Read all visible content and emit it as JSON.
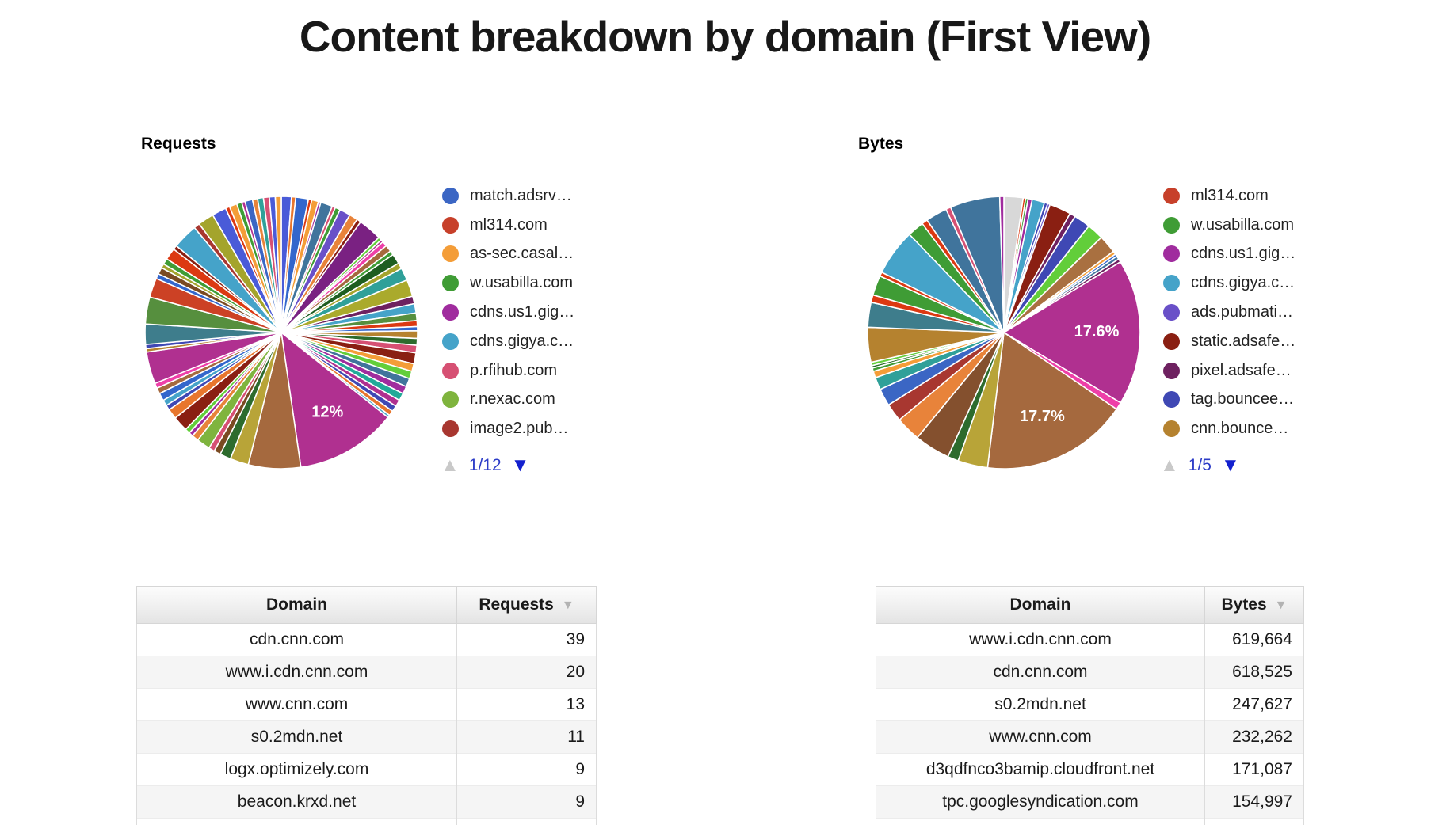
{
  "title": "Content breakdown by domain (First View)",
  "colors": {
    "pager_text": "#2b3bc7",
    "pager_enabled": "#1320ce",
    "pager_disabled": "#c9c9c9",
    "sort_icon": "#b3b3b3"
  },
  "ui": {
    "requests_pager": {
      "up": "▲",
      "down": "▼",
      "page": "1/12"
    },
    "bytes_pager": {
      "up": "▲",
      "down": "▼",
      "page": "1/5"
    },
    "sort_glyph": "▼"
  },
  "chart_data": [
    {
      "type": "pie",
      "name": "requests",
      "title": "Requests",
      "legend_position": "right",
      "legend_page": "1/12",
      "labeled_slices": [
        {
          "label": "12%",
          "color": "#B03090"
        }
      ],
      "legend": [
        {
          "label": "match.adsrv…",
          "color": "#3B66C4"
        },
        {
          "label": "ml314.com",
          "color": "#C7402A"
        },
        {
          "label": "as-sec.casal…",
          "color": "#F49D38"
        },
        {
          "label": "w.usabilla.com",
          "color": "#3F9C35"
        },
        {
          "label": "cdns.us1.gig…",
          "color": "#A02C9E"
        },
        {
          "label": "cdns.gigya.c…",
          "color": "#45A3C9"
        },
        {
          "label": "p.rfihub.com",
          "color": "#D65073"
        },
        {
          "label": "r.nexac.com",
          "color": "#7FB43E"
        },
        {
          "label": "image2.pub…",
          "color": "#A83730"
        }
      ],
      "slices": [
        [
          1.2,
          "#4A5BD8"
        ],
        [
          0.5,
          "#E8762D"
        ],
        [
          1.5,
          "#3366CC"
        ],
        [
          0.4,
          "#DC3912"
        ],
        [
          0.8,
          "#F49D38"
        ],
        [
          0.3,
          "#A02C9E"
        ],
        [
          1.4,
          "#40749C"
        ],
        [
          0.4,
          "#D65073"
        ],
        [
          0.6,
          "#3F9C35"
        ],
        [
          1.3,
          "#6950C8"
        ],
        [
          1.0,
          "#E8833A"
        ],
        [
          0.5,
          "#8A1F12"
        ],
        [
          2.8,
          "#7A2182"
        ],
        [
          0.4,
          "#62CE3A"
        ],
        [
          0.3,
          "#B03090"
        ],
        [
          0.6,
          "#EE3FA8"
        ],
        [
          0.8,
          "#A5693E"
        ],
        [
          0.5,
          "#3F9C35"
        ],
        [
          1.2,
          "#1E5E20"
        ],
        [
          0.7,
          "#A4A42C"
        ],
        [
          1.5,
          "#2FA099"
        ],
        [
          2.0,
          "#AAAA2C"
        ],
        [
          0.9,
          "#6E2160"
        ],
        [
          1.1,
          "#45A3C9"
        ],
        [
          0.9,
          "#568F3E"
        ],
        [
          0.7,
          "#DC3912"
        ],
        [
          0.5,
          "#3366CC"
        ],
        [
          0.9,
          "#B5822F"
        ],
        [
          0.8,
          "#2D6B2D"
        ],
        [
          0.9,
          "#D65073"
        ],
        [
          1.3,
          "#8A1F12"
        ],
        [
          0.9,
          "#F49D38"
        ],
        [
          0.9,
          "#62CE3A"
        ],
        [
          1.0,
          "#40749C"
        ],
        [
          0.9,
          "#A02C9E"
        ],
        [
          0.9,
          "#22AA99"
        ],
        [
          0.8,
          "#B03090"
        ],
        [
          0.7,
          "#3F48B4"
        ],
        [
          0.6,
          "#E8762D"
        ],
        [
          0.3,
          "#45A3C9"
        ],
        [
          12.0,
          "#B03090",
          "12%"
        ],
        [
          6.2,
          "#A5693E"
        ],
        [
          2.2,
          "#B8A438"
        ],
        [
          1.3,
          "#2D6B2D"
        ],
        [
          0.8,
          "#7A4A21"
        ],
        [
          0.7,
          "#D65073"
        ],
        [
          1.6,
          "#7FB43E"
        ],
        [
          0.8,
          "#E8833A"
        ],
        [
          0.5,
          "#A02C9E"
        ],
        [
          0.6,
          "#62CE3A"
        ],
        [
          1.8,
          "#8A1F12"
        ],
        [
          1.2,
          "#E8762D"
        ],
        [
          0.6,
          "#3F48B4"
        ],
        [
          0.7,
          "#45A3C9"
        ],
        [
          0.9,
          "#3366CC"
        ],
        [
          0.7,
          "#A5693E"
        ],
        [
          0.6,
          "#EE3FA8"
        ],
        [
          3.8,
          "#B03090"
        ],
        [
          0.4,
          "#B5822F"
        ],
        [
          0.5,
          "#3F48B4"
        ],
        [
          2.4,
          "#3E7D8C"
        ],
        [
          3.2,
          "#568F3E"
        ],
        [
          2.3,
          "#CC4125"
        ],
        [
          0.6,
          "#3366CC"
        ],
        [
          0.8,
          "#7A4A21"
        ],
        [
          0.5,
          "#A4A42C"
        ],
        [
          0.7,
          "#3F9C35"
        ],
        [
          1.4,
          "#DC3912"
        ],
        [
          0.5,
          "#8A1F12"
        ],
        [
          3.0,
          "#45A3C9"
        ],
        [
          0.7,
          "#A83730"
        ],
        [
          1.9,
          "#A4A42C"
        ],
        [
          1.7,
          "#4A5BD8"
        ],
        [
          0.5,
          "#DC3912"
        ],
        [
          0.9,
          "#F49D38"
        ],
        [
          0.6,
          "#3F9C35"
        ],
        [
          0.4,
          "#B03090"
        ],
        [
          0.9,
          "#3B66C4"
        ],
        [
          0.6,
          "#E8833A"
        ],
        [
          0.7,
          "#2FA099"
        ],
        [
          0.7,
          "#D65073"
        ],
        [
          0.7,
          "#4A5BD8"
        ],
        [
          0.7,
          "#F49D38"
        ]
      ]
    },
    {
      "type": "pie",
      "name": "bytes",
      "title": "Bytes",
      "legend_position": "right",
      "legend_page": "1/5",
      "labeled_slices": [
        {
          "label": "17.6%",
          "color": "#B03090"
        },
        {
          "label": "17.7%",
          "color": "#A5693E"
        }
      ],
      "legend": [
        {
          "label": "ml314.com",
          "color": "#C7402A"
        },
        {
          "label": "w.usabilla.com",
          "color": "#3F9C35"
        },
        {
          "label": "cdns.us1.gig…",
          "color": "#A02C9E"
        },
        {
          "label": "cdns.gigya.c…",
          "color": "#45A3C9"
        },
        {
          "label": "ads.pubmati…",
          "color": "#6950C8"
        },
        {
          "label": "static.adsafe…",
          "color": "#8A1F12"
        },
        {
          "label": "pixel.adsafe…",
          "color": "#6E2160"
        },
        {
          "label": "tag.bouncee…",
          "color": "#3F48B4"
        },
        {
          "label": "cnn.bounce…",
          "color": "#B5822F"
        }
      ],
      "slices": [
        [
          2.3,
          "#D8D8D8"
        ],
        [
          0.3,
          "#DC3912"
        ],
        [
          0.3,
          "#3F9C35"
        ],
        [
          0.5,
          "#A02C9E"
        ],
        [
          1.5,
          "#45A3C9"
        ],
        [
          0.4,
          "#3F48B4"
        ],
        [
          0.3,
          "#6950C8"
        ],
        [
          2.6,
          "#8A1F12"
        ],
        [
          0.7,
          "#6E2160"
        ],
        [
          2.0,
          "#3F48B4"
        ],
        [
          2.0,
          "#62CE3A"
        ],
        [
          2.2,
          "#A97040"
        ],
        [
          0.4,
          "#F49D38"
        ],
        [
          0.3,
          "#3366CC"
        ],
        [
          0.4,
          "#40749C"
        ],
        [
          0.4,
          "#6E2160"
        ],
        [
          17.6,
          "#B03090",
          "17.6%"
        ],
        [
          0.9,
          "#EE3FA8"
        ],
        [
          17.7,
          "#A5693E",
          "17.7%"
        ],
        [
          3.6,
          "#B8A438"
        ],
        [
          1.3,
          "#2D6B2D"
        ],
        [
          4.3,
          "#84502E"
        ],
        [
          3.0,
          "#E8833A"
        ],
        [
          2.2,
          "#A83730"
        ],
        [
          2.1,
          "#3B66C4"
        ],
        [
          1.5,
          "#2FA099"
        ],
        [
          0.8,
          "#F49D38"
        ],
        [
          0.4,
          "#3F9C35"
        ],
        [
          0.3,
          "#2D6B2D"
        ],
        [
          0.4,
          "#62CE3A"
        ],
        [
          4.2,
          "#B5822F"
        ],
        [
          3.0,
          "#3E7D8C"
        ],
        [
          0.9,
          "#DC3912"
        ],
        [
          2.4,
          "#3F9C35"
        ],
        [
          0.5,
          "#DC3912"
        ],
        [
          5.6,
          "#45A3C9"
        ],
        [
          2.0,
          "#3F9C35"
        ],
        [
          0.7,
          "#DC3912"
        ],
        [
          2.6,
          "#40749C"
        ],
        [
          0.6,
          "#D65073"
        ],
        [
          6.0,
          "#40749C"
        ],
        [
          0.5,
          "#A02C9E"
        ]
      ]
    },
    {
      "type": "table",
      "name": "requests_by_domain",
      "headers": [
        "Domain",
        "Requests"
      ],
      "sorted_by": "Requests",
      "rows": [
        [
          "cdn.cnn.com",
          "39"
        ],
        [
          "www.i.cdn.cnn.com",
          "20"
        ],
        [
          "www.cnn.com",
          "13"
        ],
        [
          "s0.2mdn.net",
          "11"
        ],
        [
          "logx.optimizely.com",
          "9"
        ],
        [
          "beacon.krxd.net",
          "9"
        ]
      ]
    },
    {
      "type": "table",
      "name": "bytes_by_domain",
      "headers": [
        "Domain",
        "Bytes"
      ],
      "sorted_by": "Bytes",
      "rows": [
        [
          "www.i.cdn.cnn.com",
          "619,664"
        ],
        [
          "cdn.cnn.com",
          "618,525"
        ],
        [
          "s0.2mdn.net",
          "247,627"
        ],
        [
          "www.cnn.com",
          "232,262"
        ],
        [
          "d3qdfnco3bamip.cloudfront.net",
          "171,087"
        ],
        [
          "tpc.googlesyndication.com",
          "154,997"
        ]
      ]
    }
  ]
}
